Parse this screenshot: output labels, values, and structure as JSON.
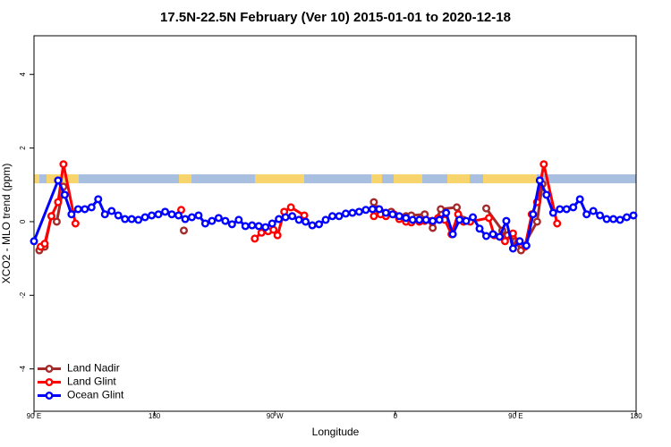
{
  "chart_data": {
    "type": "line",
    "title": "17.5N-22.5N February (Ver 10)   2015-01-01 to 2020-12-18",
    "x_label": "Longitude",
    "y_label": "XCO2 - MLO trend (ppm)",
    "xlim": [
      90,
      540
    ],
    "xticks": [
      {
        "value": 90,
        "label": "90 E"
      },
      180,
      {
        "value": 270,
        "label": "90 W"
      },
      {
        "value": 360,
        "label": "0"
      },
      {
        "value": 450,
        "label": "90 E"
      },
      {
        "value": 540,
        "label": "180"
      }
    ],
    "ylim": [
      -5.15,
      5.05
    ],
    "yticks": [
      -4,
      -2,
      0,
      2,
      4
    ],
    "legend": "bottom-left",
    "series": [
      {
        "name": "Land Nadir",
        "color": "#a52a2a",
        "x": [
          94,
          98,
          103,
          107,
          112,
          null,
          202,
          null,
          344,
          347,
          357,
          368,
          372,
          382,
          388,
          394,
          406,
          411,
          null,
          428,
          440,
          444,
          450,
          454,
          466,
          470
        ],
        "values": [
          -0.78,
          -0.68,
          0.15,
          0,
          0.95,
          null,
          -0.24,
          null,
          0.53,
          0.34,
          0.27,
          0.15,
          0.17,
          0.2,
          -0.17,
          0.34,
          0.39,
          0.05,
          null,
          0.36,
          -0.24,
          -0.37,
          -0.53,
          -0.78,
          0,
          1.02
        ]
      },
      {
        "name": "Land Glint",
        "color": "#ff0000",
        "x": [
          95,
          98,
          103,
          108,
          112,
          121,
          null,
          200,
          null,
          255,
          260,
          265,
          269,
          272,
          277,
          282,
          292,
          null,
          344,
          349,
          353,
          359,
          363,
          368,
          372,
          378,
          382,
          387,
          392,
          397,
          402,
          407,
          411,
          416,
          430,
          434,
          439,
          442,
          448,
          452,
          457,
          462,
          466,
          471,
          481
        ],
        "values": [
          -0.68,
          -0.6,
          0.15,
          0.53,
          1.56,
          -0.05,
          null,
          0.32,
          null,
          -0.46,
          -0.3,
          -0.26,
          -0.22,
          -0.37,
          0.27,
          0.39,
          0.17,
          null,
          0.15,
          0.2,
          0.15,
          0.2,
          0.07,
          0,
          -0.02,
          0,
          0.02,
          0.02,
          0.1,
          0.05,
          -0.34,
          0.2,
          0,
          0,
          0.1,
          -0.37,
          -0.41,
          -0.53,
          -0.32,
          -0.55,
          -0.68,
          0.2,
          0.53,
          1.56,
          -0.05
        ]
      },
      {
        "name": "Ocean Glint",
        "color": "#0000ff",
        "x": [
          90,
          108,
          113,
          118,
          123,
          128,
          133,
          138,
          143,
          148,
          153,
          158,
          163,
          168,
          173,
          178,
          183,
          188,
          193,
          198,
          203,
          208,
          213,
          218,
          223,
          228,
          233,
          238,
          243,
          248,
          253,
          258,
          263,
          268,
          273,
          278,
          283,
          288,
          293,
          298,
          303,
          308,
          313,
          318,
          323,
          328,
          333,
          338,
          343,
          348,
          353,
          358,
          363,
          368,
          373,
          378,
          383,
          388,
          393,
          398,
          403,
          408,
          413,
          418,
          423,
          428,
          433,
          438,
          443,
          448,
          453,
          458,
          463,
          468,
          473,
          478,
          483,
          488,
          493,
          498,
          503,
          508,
          513,
          518,
          523,
          528,
          533,
          538
        ],
        "values": [
          -0.53,
          1.12,
          0.73,
          0.2,
          0.34,
          0.34,
          0.39,
          0.61,
          0.2,
          0.29,
          0.17,
          0.07,
          0.07,
          0.05,
          0.12,
          0.17,
          0.2,
          0.27,
          0.2,
          0.17,
          0.07,
          0.12,
          0.17,
          -0.05,
          0.02,
          0.1,
          0.02,
          -0.07,
          0.05,
          -0.12,
          -0.1,
          -0.12,
          -0.15,
          -0.05,
          0.07,
          0.12,
          0.15,
          0.05,
          0,
          -0.1,
          -0.07,
          0.05,
          0.15,
          0.15,
          0.22,
          0.24,
          0.27,
          0.32,
          0.34,
          0.34,
          0.24,
          0.2,
          0.15,
          0.1,
          0.05,
          0.05,
          0.05,
          0.02,
          0.05,
          0.24,
          -0.34,
          0.05,
          0.02,
          0.12,
          -0.19,
          -0.39,
          -0.34,
          -0.41,
          0.02,
          -0.73,
          -0.53,
          -0.65,
          0.2,
          1.12,
          0.73,
          0.24,
          0.34,
          0.34,
          0.39,
          0.61,
          0.2,
          0.29,
          0.17,
          0.07,
          0.07,
          0.05,
          0.12,
          0.17
        ]
      }
    ]
  }
}
